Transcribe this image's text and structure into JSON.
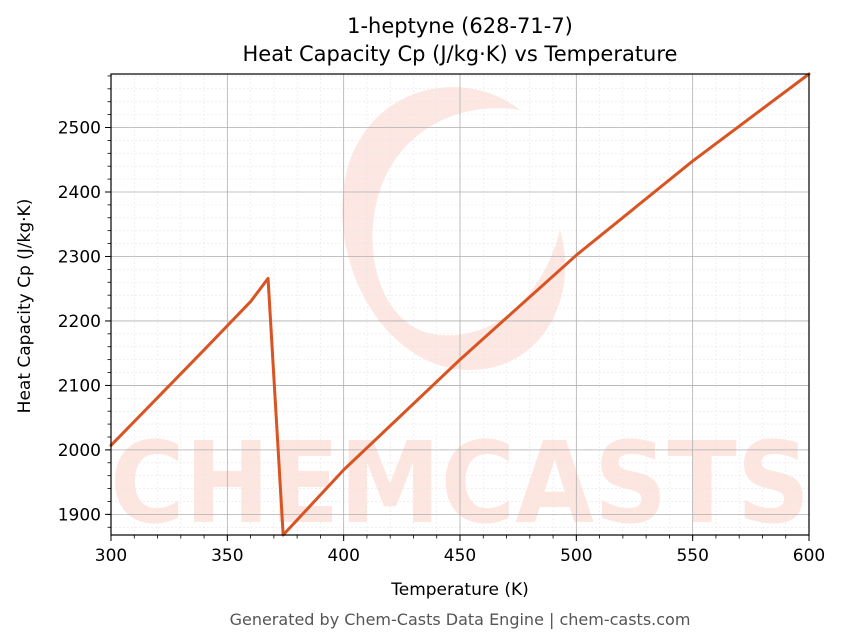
{
  "chart_data": {
    "type": "line",
    "title_line1": "1-heptyne (628-71-7)",
    "title_line2": "Heat Capacity Cp (J/kg·K) vs Temperature",
    "xlabel": "Temperature (K)",
    "ylabel": "Heat Capacity Cp (J/kg·K)",
    "xlim": [
      300,
      600
    ],
    "ylim": [
      1868,
      2583
    ],
    "xticks": [
      300,
      350,
      400,
      450,
      500,
      550,
      600
    ],
    "yticks": [
      1900,
      2000,
      2100,
      2200,
      2300,
      2400,
      2500
    ],
    "grid": true,
    "series": [
      {
        "color": "#d95423",
        "x": [
          300,
          320,
          340,
          360,
          367.5,
          374,
          400,
          450,
          500,
          550,
          600
        ],
        "y": [
          2007,
          2081,
          2155,
          2230,
          2266,
          1868,
          1969,
          2140,
          2302,
          2448,
          2583
        ]
      }
    ]
  },
  "watermark": {
    "text": "CHEMCASTS",
    "color": "#fde3dd"
  },
  "footer": "Generated by Chem-Casts Data Engine | chem-casts.com"
}
